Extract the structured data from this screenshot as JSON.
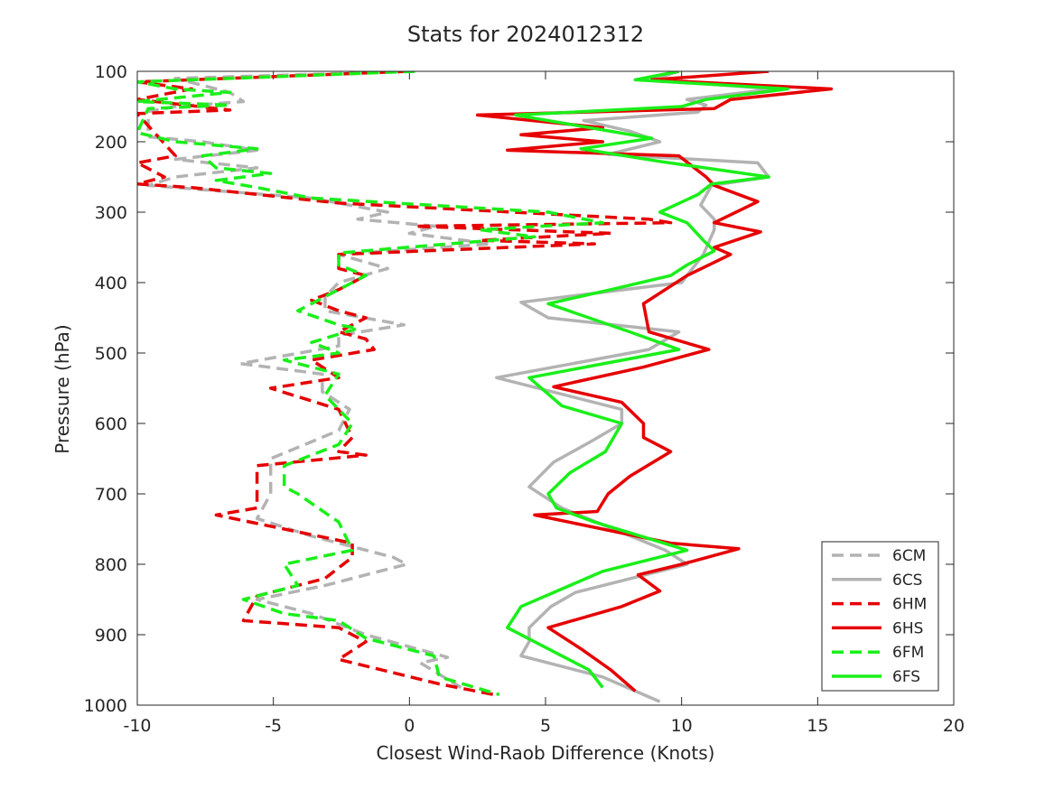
{
  "chart_data": {
    "type": "line",
    "title": "Stats for 2024012312",
    "xlabel": "Closest Wind-Raob Difference (Knots)",
    "ylabel": "Pressure (hPa)",
    "xlim": [
      -10,
      20
    ],
    "ylim": [
      100,
      1000
    ],
    "y_reversed": true,
    "grid": false,
    "legend_position": "bottom-right",
    "xticks": [
      -10,
      -5,
      0,
      5,
      10,
      15,
      20
    ],
    "yticks": [
      100,
      200,
      300,
      400,
      500,
      600,
      700,
      800,
      900,
      1000
    ],
    "series": [
      {
        "name": "6CM",
        "color": "#b3b3b3",
        "dash": true,
        "points": [
          [
            0.2,
            100
          ],
          [
            -8.6,
            110
          ],
          [
            -6.6,
            130
          ],
          [
            -6.1,
            143
          ],
          [
            -8.6,
            150
          ],
          [
            -9.6,
            157
          ],
          [
            -9.6,
            193
          ],
          [
            -7.6,
            200
          ],
          [
            -5.6,
            212
          ],
          [
            -8.6,
            225
          ],
          [
            -5.6,
            237
          ],
          [
            -8.6,
            250
          ],
          [
            -9.6,
            262
          ],
          [
            -3.6,
            280
          ],
          [
            -0.8,
            300
          ],
          [
            -1.9,
            310
          ],
          [
            1.0,
            320
          ],
          [
            0.0,
            330
          ],
          [
            3.0,
            345
          ],
          [
            -2.6,
            360
          ],
          [
            -0.8,
            380
          ],
          [
            -2.6,
            400
          ],
          [
            -3.1,
            420
          ],
          [
            -3.1,
            440
          ],
          [
            -0.2,
            460
          ],
          [
            -2.6,
            475
          ],
          [
            -2.6,
            490
          ],
          [
            -6.2,
            515
          ],
          [
            -3.2,
            530
          ],
          [
            -3.2,
            555
          ],
          [
            -2.2,
            580
          ],
          [
            -2.6,
            610
          ],
          [
            -5.1,
            650
          ],
          [
            -5.1,
            700
          ],
          [
            -5.6,
            735
          ],
          [
            -3.6,
            760
          ],
          [
            -0.6,
            790
          ],
          [
            -0.1,
            800
          ],
          [
            -3.1,
            830
          ],
          [
            -5.6,
            850
          ],
          [
            -3.6,
            870
          ],
          [
            -1.6,
            900
          ],
          [
            1.4,
            932
          ],
          [
            0.4,
            940
          ],
          [
            1.9,
            975
          ]
        ]
      },
      {
        "name": "6CS",
        "color": "#b3b3b3",
        "dash": false,
        "points": [
          [
            9.9,
            100
          ],
          [
            8.9,
            112
          ],
          [
            13.4,
            125
          ],
          [
            10.2,
            140
          ],
          [
            10.9,
            148
          ],
          [
            10.6,
            158
          ],
          [
            6.4,
            170
          ],
          [
            8.1,
            185
          ],
          [
            9.2,
            200
          ],
          [
            7.3,
            218
          ],
          [
            12.8,
            230
          ],
          [
            13.2,
            250
          ],
          [
            11.1,
            262
          ],
          [
            10.7,
            290
          ],
          [
            11.2,
            310
          ],
          [
            11.2,
            325
          ],
          [
            10.8,
            360
          ],
          [
            10.0,
            400
          ],
          [
            4.1,
            428
          ],
          [
            5.1,
            450
          ],
          [
            9.9,
            470
          ],
          [
            8.8,
            495
          ],
          [
            3.2,
            535
          ],
          [
            7.8,
            580
          ],
          [
            7.8,
            600
          ],
          [
            6.7,
            625
          ],
          [
            5.3,
            655
          ],
          [
            4.4,
            690
          ],
          [
            5.6,
            720
          ],
          [
            7.5,
            750
          ],
          [
            9.4,
            780
          ],
          [
            10.2,
            800
          ],
          [
            6.1,
            840
          ],
          [
            5.2,
            860
          ],
          [
            4.4,
            890
          ],
          [
            4.4,
            910
          ],
          [
            4.1,
            930
          ],
          [
            7.1,
            960
          ],
          [
            9.2,
            995
          ]
        ]
      },
      {
        "name": "6HM",
        "color": "#e60000",
        "dash": true,
        "points": [
          [
            0.0,
            100
          ],
          [
            -10.0,
            115
          ],
          [
            -8.0,
            125
          ],
          [
            -10.0,
            140
          ],
          [
            -6.6,
            155
          ],
          [
            -10.0,
            160
          ],
          [
            -8.6,
            220
          ],
          [
            -10.0,
            230
          ],
          [
            -9.0,
            250
          ],
          [
            -10.0,
            260
          ],
          [
            -8.0,
            265
          ],
          [
            -2.6,
            287
          ],
          [
            8.8,
            310
          ],
          [
            9.6,
            315
          ],
          [
            0.2,
            320
          ],
          [
            7.4,
            330
          ],
          [
            2.6,
            340
          ],
          [
            6.8,
            345
          ],
          [
            -2.6,
            360
          ],
          [
            -2.6,
            380
          ],
          [
            -1.6,
            390
          ],
          [
            -2.6,
            410
          ],
          [
            -3.6,
            425
          ],
          [
            -2.6,
            440
          ],
          [
            -1.6,
            450
          ],
          [
            -2.6,
            470
          ],
          [
            -1.6,
            480
          ],
          [
            -1.3,
            495
          ],
          [
            -3.6,
            510
          ],
          [
            -2.6,
            535
          ],
          [
            -5.1,
            550
          ],
          [
            -2.6,
            580
          ],
          [
            -2.1,
            620
          ],
          [
            -2.6,
            640
          ],
          [
            -1.6,
            645
          ],
          [
            -5.6,
            660
          ],
          [
            -5.6,
            720
          ],
          [
            -7.1,
            730
          ],
          [
            -2.1,
            770
          ],
          [
            -2.1,
            790
          ],
          [
            -3.1,
            820
          ],
          [
            -5.6,
            845
          ],
          [
            -6.1,
            880
          ],
          [
            -2.6,
            890
          ],
          [
            -1.6,
            910
          ],
          [
            -2.6,
            935
          ],
          [
            1.1,
            970
          ],
          [
            3.1,
            985
          ]
        ]
      },
      {
        "name": "6HS",
        "color": "#e60000",
        "dash": false,
        "points": [
          [
            13.2,
            100
          ],
          [
            8.9,
            112
          ],
          [
            15.5,
            125
          ],
          [
            11.8,
            140
          ],
          [
            11.2,
            153
          ],
          [
            2.5,
            162
          ],
          [
            7.1,
            180
          ],
          [
            4.1,
            190
          ],
          [
            7.1,
            200
          ],
          [
            3.6,
            212
          ],
          [
            9.9,
            220
          ],
          [
            10.9,
            250
          ],
          [
            11.2,
            262
          ],
          [
            12.8,
            285
          ],
          [
            11.2,
            315
          ],
          [
            12.9,
            328
          ],
          [
            11.2,
            350
          ],
          [
            11.8,
            360
          ],
          [
            10.2,
            390
          ],
          [
            8.6,
            430
          ],
          [
            8.8,
            470
          ],
          [
            11.0,
            495
          ],
          [
            8.6,
            520
          ],
          [
            5.3,
            548
          ],
          [
            7.8,
            570
          ],
          [
            8.6,
            600
          ],
          [
            8.6,
            620
          ],
          [
            9.6,
            640
          ],
          [
            8.1,
            675
          ],
          [
            7.3,
            700
          ],
          [
            6.9,
            725
          ],
          [
            4.6,
            730
          ],
          [
            7.1,
            750
          ],
          [
            9.6,
            770
          ],
          [
            12.1,
            778
          ],
          [
            10.0,
            800
          ],
          [
            8.4,
            815
          ],
          [
            9.2,
            838
          ],
          [
            7.8,
            860
          ],
          [
            5.1,
            890
          ],
          [
            6.3,
            920
          ],
          [
            7.4,
            950
          ],
          [
            8.3,
            980
          ]
        ]
      },
      {
        "name": "6FM",
        "color": "#1aef1a",
        "dash": true,
        "points": [
          [
            0.2,
            100
          ],
          [
            -10.0,
            115
          ],
          [
            -8.6,
            125
          ],
          [
            -6.6,
            130
          ],
          [
            -10.0,
            143
          ],
          [
            -6.6,
            148
          ],
          [
            -9.6,
            153
          ],
          [
            -10.0,
            187
          ],
          [
            -8.6,
            200
          ],
          [
            -5.6,
            210
          ],
          [
            -7.6,
            220
          ],
          [
            -7.1,
            237
          ],
          [
            -5.1,
            245
          ],
          [
            -7.1,
            255
          ],
          [
            -5.6,
            265
          ],
          [
            -3.6,
            280
          ],
          [
            5.1,
            300
          ],
          [
            7.1,
            315
          ],
          [
            2.6,
            325
          ],
          [
            4.6,
            335
          ],
          [
            -2.6,
            358
          ],
          [
            -2.6,
            375
          ],
          [
            -1.6,
            390
          ],
          [
            -3.1,
            420
          ],
          [
            -4.1,
            440
          ],
          [
            -2.6,
            460
          ],
          [
            -1.9,
            465
          ],
          [
            -3.6,
            485
          ],
          [
            -2.6,
            500
          ],
          [
            -4.6,
            510
          ],
          [
            -2.6,
            530
          ],
          [
            -3.1,
            560
          ],
          [
            -2.6,
            580
          ],
          [
            -2.1,
            600
          ],
          [
            -2.6,
            630
          ],
          [
            -4.6,
            660
          ],
          [
            -4.6,
            690
          ],
          [
            -4.1,
            700
          ],
          [
            -2.6,
            740
          ],
          [
            -2.1,
            780
          ],
          [
            -4.6,
            800
          ],
          [
            -4.1,
            830
          ],
          [
            -6.1,
            850
          ],
          [
            -4.6,
            870
          ],
          [
            -2.6,
            880
          ],
          [
            -1.6,
            905
          ],
          [
            0.9,
            930
          ],
          [
            1.1,
            960
          ],
          [
            3.3,
            985
          ]
        ]
      },
      {
        "name": "6FS",
        "color": "#1aef1a",
        "dash": false,
        "points": [
          [
            9.9,
            100
          ],
          [
            8.3,
            112
          ],
          [
            13.9,
            125
          ],
          [
            10.9,
            140
          ],
          [
            10.0,
            150
          ],
          [
            3.9,
            162
          ],
          [
            8.9,
            195
          ],
          [
            6.3,
            210
          ],
          [
            9.2,
            228
          ],
          [
            13.2,
            250
          ],
          [
            11.1,
            260
          ],
          [
            10.6,
            275
          ],
          [
            9.2,
            300
          ],
          [
            10.2,
            315
          ],
          [
            10.8,
            340
          ],
          [
            11.2,
            355
          ],
          [
            10.2,
            375
          ],
          [
            9.6,
            390
          ],
          [
            7.4,
            410
          ],
          [
            5.1,
            430
          ],
          [
            8.1,
            470
          ],
          [
            9.9,
            495
          ],
          [
            4.4,
            535
          ],
          [
            5.6,
            575
          ],
          [
            7.8,
            600
          ],
          [
            7.2,
            640
          ],
          [
            5.9,
            670
          ],
          [
            5.1,
            700
          ],
          [
            5.4,
            720
          ],
          [
            6.8,
            740
          ],
          [
            10.2,
            780
          ],
          [
            7.1,
            810
          ],
          [
            4.1,
            860
          ],
          [
            3.6,
            890
          ],
          [
            4.6,
            910
          ],
          [
            6.6,
            950
          ],
          [
            7.1,
            975
          ]
        ]
      }
    ]
  }
}
